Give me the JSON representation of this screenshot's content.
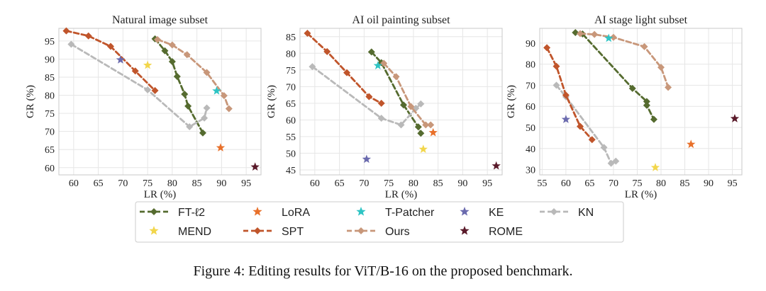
{
  "caption": "Figure 4: Editing results for ViT/B-16 on the proposed benchmark.",
  "colors": {
    "FT-ℓ2": "#556b2f",
    "LoRA": "#e8702a",
    "T-Patcher": "#2ec4c4",
    "KE": "#6a6aae",
    "KN": "#b9b9b9",
    "MEND": "#f2d64b",
    "SPT": "#c0552b",
    "Ours": "#c8977a",
    "ROME": "#5a1a2a"
  },
  "legend": [
    {
      "label": "FT-ℓ2",
      "kind": "line-diamond"
    },
    {
      "label": "LoRA",
      "kind": "star"
    },
    {
      "label": "T-Patcher",
      "kind": "star"
    },
    {
      "label": "KE",
      "kind": "star"
    },
    {
      "label": "KN",
      "kind": "line-diamond"
    },
    {
      "label": "MEND",
      "kind": "star"
    },
    {
      "label": "SPT",
      "kind": "line-diamond"
    },
    {
      "label": "Ours",
      "kind": "line-diamond"
    },
    {
      "label": "ROME",
      "kind": "star"
    }
  ],
  "chart_data": [
    {
      "type": "scatter",
      "title": "Natural image subset",
      "xlabel": "LR (%)",
      "ylabel": "GR (%)",
      "xlim": [
        57,
        98
      ],
      "ylim": [
        58,
        98.5
      ],
      "xticks": [
        60,
        65,
        70,
        75,
        80,
        85,
        90,
        95
      ],
      "yticks": [
        60,
        65,
        70,
        75,
        80,
        85,
        90,
        95
      ],
      "grid": true,
      "lines": [
        {
          "name": "FT-ℓ2",
          "x": [
            76.5,
            78.5,
            80,
            81,
            82.5,
            83.2,
            86.2
          ],
          "y": [
            95.6,
            92.3,
            89.3,
            85.2,
            80.3,
            77,
            69.6
          ]
        },
        {
          "name": "KN",
          "x": [
            59.5,
            75,
            83.5,
            86.5,
            87
          ],
          "y": [
            94.1,
            81.5,
            71.3,
            73.7,
            76.5
          ]
        },
        {
          "name": "SPT",
          "x": [
            58.5,
            63,
            67.5,
            72.5,
            76.5
          ],
          "y": [
            97.8,
            96.4,
            93.5,
            86.7,
            81.3
          ]
        },
        {
          "name": "Ours",
          "x": [
            77,
            80,
            83,
            87,
            90.5,
            91.5
          ],
          "y": [
            95.4,
            93.9,
            91.2,
            86.3,
            79.9,
            76.3
          ]
        }
      ],
      "points": [
        {
          "name": "T-Patcher",
          "x": [
            89
          ],
          "y": [
            81.2
          ]
        },
        {
          "name": "KE",
          "x": [
            69.5
          ],
          "y": [
            89.8
          ]
        },
        {
          "name": "MEND",
          "x": [
            75
          ],
          "y": [
            88.3
          ]
        },
        {
          "name": "LoRA",
          "x": [
            89.8
          ],
          "y": [
            65.5
          ]
        },
        {
          "name": "ROME",
          "x": [
            96.8
          ],
          "y": [
            60.2
          ]
        }
      ]
    },
    {
      "type": "scatter",
      "title": "AI oil painting subset",
      "xlabel": "LR (%)",
      "ylabel": "GR (%)",
      "xlim": [
        57,
        98
      ],
      "ylim": [
        43.5,
        87.5
      ],
      "xticks": [
        60,
        65,
        70,
        75,
        80,
        85,
        90,
        95
      ],
      "yticks": [
        45,
        50,
        55,
        60,
        65,
        70,
        75,
        80,
        85
      ],
      "grid": true,
      "lines": [
        {
          "name": "FT-ℓ2",
          "x": [
            71.5,
            73.5,
            78,
            81,
            81.5
          ],
          "y": [
            80.4,
            77.2,
            64.5,
            57.9,
            56
          ]
        },
        {
          "name": "KN",
          "x": [
            59.5,
            73.5,
            77.5,
            80.5,
            81.5
          ],
          "y": [
            76,
            60.5,
            58.5,
            63.5,
            64.8
          ]
        },
        {
          "name": "SPT",
          "x": [
            58.5,
            62.5,
            66.5,
            71,
            73.5
          ],
          "y": [
            86,
            80.5,
            74.2,
            67,
            65
          ]
        },
        {
          "name": "Ours",
          "x": [
            74,
            76.5,
            79.5,
            82.5,
            83.5
          ],
          "y": [
            77,
            73,
            64,
            58.5,
            58.5
          ]
        }
      ],
      "points": [
        {
          "name": "T-Patcher",
          "x": [
            72.8
          ],
          "y": [
            76.3
          ]
        },
        {
          "name": "KE",
          "x": [
            70.5
          ],
          "y": [
            48.2
          ]
        },
        {
          "name": "MEND",
          "x": [
            82
          ],
          "y": [
            51.2
          ]
        },
        {
          "name": "LoRA",
          "x": [
            84
          ],
          "y": [
            56.2
          ]
        },
        {
          "name": "ROME",
          "x": [
            96.8
          ],
          "y": [
            46.2
          ]
        }
      ]
    },
    {
      "type": "scatter",
      "title": "AI stage light subset",
      "xlabel": "LR (%)",
      "ylabel": "GR (%)",
      "xlim": [
        54.5,
        97
      ],
      "ylim": [
        27.5,
        97
      ],
      "xticks": [
        55,
        60,
        65,
        70,
        75,
        80,
        85,
        90,
        95
      ],
      "yticks": [
        30,
        40,
        50,
        60,
        70,
        80,
        90
      ],
      "grid": true,
      "lines": [
        {
          "name": "FT-ℓ2",
          "x": [
            62,
            63.5,
            74,
            77,
            77,
            78.5
          ],
          "y": [
            95,
            94.3,
            68.5,
            62.3,
            60.5,
            53.8
          ]
        },
        {
          "name": "KN",
          "x": [
            58,
            60,
            68,
            69.5,
            70.5
          ],
          "y": [
            70,
            64.5,
            40.5,
            33,
            34
          ]
        },
        {
          "name": "SPT",
          "x": [
            56,
            58,
            60,
            63,
            65.5
          ],
          "y": [
            87.8,
            79,
            65.3,
            50.5,
            44.2
          ]
        },
        {
          "name": "Ours",
          "x": [
            63,
            66,
            70,
            76.5,
            80,
            81.5
          ],
          "y": [
            94.5,
            94.1,
            92.7,
            88.3,
            78.5,
            69
          ]
        }
      ],
      "points": [
        {
          "name": "T-Patcher",
          "x": [
            69
          ],
          "y": [
            92.3
          ]
        },
        {
          "name": "KE",
          "x": [
            60
          ],
          "y": [
            53.8
          ]
        },
        {
          "name": "MEND",
          "x": [
            78.8
          ],
          "y": [
            31
          ]
        },
        {
          "name": "LoRA",
          "x": [
            86.3
          ],
          "y": [
            42
          ]
        },
        {
          "name": "ROME",
          "x": [
            95.5
          ],
          "y": [
            54.2
          ]
        }
      ]
    }
  ]
}
